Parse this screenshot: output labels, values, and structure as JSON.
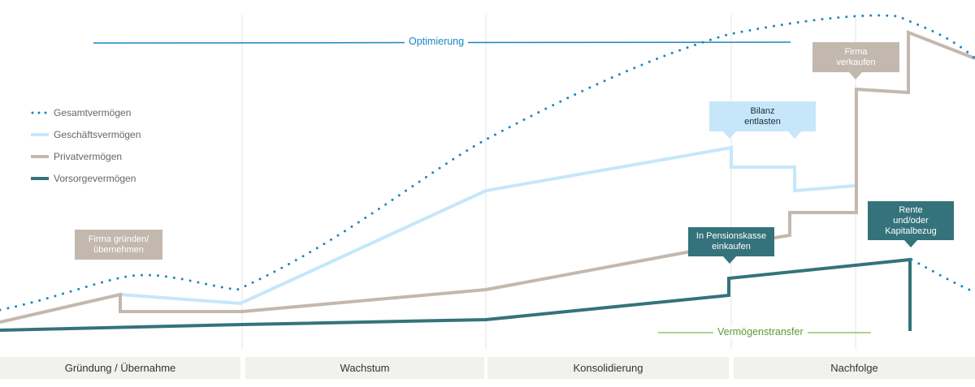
{
  "colors": {
    "gesamt": "#1a86c0",
    "geschaeft": "#c6e7fa",
    "privat": "#c2b8ae",
    "vorsorge": "#34737b",
    "optimierung": "#1a86c0",
    "transfer": "#7bb84f",
    "phase_bg": "#f2f1ee"
  },
  "legend": {
    "gesamt": "Gesamtvermögen",
    "geschaeft": "Geschäftsvermögen",
    "privat": "Privatvermögen",
    "vorsorge": "Vorsorgevermögen"
  },
  "annotations": {
    "optimierung": "Optimierung",
    "transfer": "Vermögenstransfer"
  },
  "callouts": {
    "firma_gruenden": "Firma gründen/\nübernehmen",
    "bilanz": "Bilanz\nentlasten",
    "pensionskasse": "In Pensionskasse\neinkaufen",
    "firma_verkaufen": "Firma\nverkaufen",
    "rente": "Rente\nund/oder\nKapitalbezug"
  },
  "phases": {
    "gruendung": "Gründung / Übernahme",
    "wachstum": "Wachstum",
    "konsolidierung": "Konsolidierung",
    "nachfolge": "Nachfolge"
  }
}
